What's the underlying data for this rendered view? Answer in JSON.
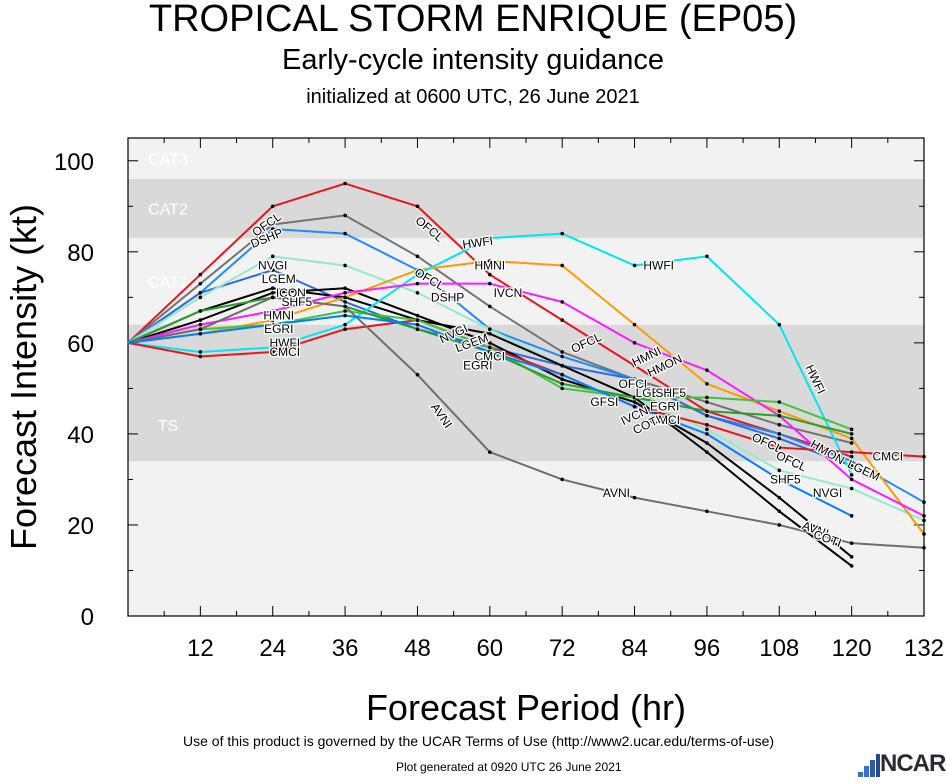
{
  "header": {
    "title": "TROPICAL STORM ENRIQUE (EP05)",
    "subtitle": "Early-cycle intensity guidance",
    "initialized": "initialized at 0600 UTC, 26 June 2021"
  },
  "footer": {
    "terms": "Use of this product is governed by the UCAR Terms of Use (http://www2.ucar.edu/terms-of-use)",
    "generated": "Plot generated at 0920 UTC   26 June 2021",
    "logo_text": "NCAR"
  },
  "chart_data": {
    "type": "line",
    "title": "TROPICAL STORM ENRIQUE (EP05)",
    "subtitle": "Early-cycle intensity guidance",
    "xlabel": "Forecast Period (hr)",
    "ylabel": "Forecast Intensity (kt)",
    "xlim": [
      0,
      132
    ],
    "ylim": [
      0,
      105
    ],
    "xticks": [
      12,
      24,
      36,
      48,
      60,
      72,
      84,
      96,
      108,
      120,
      132
    ],
    "yticks": [
      0,
      20,
      40,
      60,
      80,
      100
    ],
    "bands": [
      {
        "label": "TS",
        "from": 34,
        "to": 64,
        "fill": "#d9d9d9"
      },
      {
        "label": "CAT1",
        "from": 64,
        "to": 83,
        "fill": "#f2f2f2"
      },
      {
        "label": "CAT2",
        "from": 83,
        "to": 96,
        "fill": "#d9d9d9"
      },
      {
        "label": "CAT3",
        "from": 96,
        "to": 105,
        "fill": "#f2f2f2"
      }
    ],
    "below_band_fill": "#f2f2f2",
    "series": [
      {
        "name": "OFCL",
        "color": "#e8161c",
        "x": [
          0,
          12,
          24,
          36,
          48,
          60,
          72,
          84,
          96,
          108,
          120
        ],
        "values": [
          60,
          75,
          90,
          95,
          90,
          75,
          65,
          55,
          45,
          40,
          35
        ]
      },
      {
        "name": "DSHP",
        "color": "#737373",
        "x": [
          0,
          12,
          24,
          36,
          48,
          60,
          72,
          84,
          96,
          108,
          120
        ],
        "values": [
          60,
          73,
          86,
          88,
          79,
          68,
          58,
          52,
          47,
          42,
          38
        ]
      },
      {
        "name": "SHF5",
        "color": "#1e8bff",
        "x": [
          0,
          12,
          24,
          36,
          48,
          60,
          72,
          84,
          96,
          108,
          120,
          132
        ],
        "values": [
          60,
          71,
          85,
          84,
          76,
          63,
          57,
          52,
          44,
          40,
          34,
          25
        ]
      },
      {
        "name": "LGEM",
        "color": "#2f6be0",
        "x": [
          0,
          12,
          24,
          36,
          48,
          60,
          72,
          84,
          96,
          108,
          120
        ],
        "values": [
          60,
          71,
          76,
          69,
          63,
          59,
          55,
          52,
          44,
          39,
          33
        ]
      },
      {
        "name": "NVGI",
        "color": "#95e8cc",
        "x": [
          0,
          12,
          24,
          36,
          48,
          60,
          72,
          84,
          96,
          108,
          120,
          132
        ],
        "values": [
          60,
          70,
          79,
          77,
          71,
          63,
          55,
          48,
          41,
          32,
          28,
          21
        ]
      },
      {
        "name": "IVCN",
        "color": "#000000",
        "x": [
          0,
          12,
          24,
          36,
          48,
          60,
          72,
          84,
          96,
          108,
          120
        ],
        "values": [
          60,
          67,
          72,
          70,
          65,
          62,
          55,
          48,
          36,
          23,
          11
        ]
      },
      {
        "name": "ICON",
        "color": "#000000",
        "x": [
          0,
          12,
          24,
          36,
          48,
          60,
          72,
          84,
          96,
          108,
          120
        ],
        "values": [
          60,
          65,
          71,
          72,
          66,
          60,
          52,
          47,
          38,
          26,
          13
        ]
      },
      {
        "name": "HMNI",
        "color": "#ff9a00",
        "x": [
          0,
          12,
          24,
          36,
          48,
          60,
          72,
          84,
          96,
          108,
          120,
          132
        ],
        "values": [
          60,
          62,
          65,
          70,
          76,
          78,
          77,
          64,
          51,
          45,
          39,
          18
        ]
      },
      {
        "name": "HWFI",
        "color": "#00e5f0",
        "x": [
          0,
          12,
          24,
          36,
          48,
          60,
          72,
          84,
          96,
          108,
          120
        ],
        "values": [
          60,
          58,
          59,
          64,
          75,
          83,
          84,
          77,
          79,
          64,
          31
        ]
      },
      {
        "name": "CMCI",
        "color": "#e8161c",
        "x": [
          0,
          12,
          24,
          36,
          48,
          60,
          72,
          84,
          96,
          108,
          120,
          132
        ],
        "values": [
          60,
          57,
          58,
          63,
          65,
          59,
          53,
          46,
          42,
          37,
          36,
          35
        ]
      },
      {
        "name": "GFSI",
        "color": "#ff1aff",
        "x": [
          0,
          12,
          24,
          36,
          48,
          60,
          72,
          84,
          96,
          108,
          120,
          132
        ],
        "values": [
          60,
          64,
          67,
          71,
          73,
          73,
          69,
          60,
          54,
          44,
          30,
          22
        ]
      },
      {
        "name": "EGRI",
        "color": "#3fc43f",
        "x": [
          0,
          12,
          24,
          36,
          48,
          60,
          72,
          84,
          96,
          108,
          120
        ],
        "values": [
          60,
          63,
          64,
          67,
          65,
          59,
          50,
          48,
          48,
          47,
          41
        ]
      },
      {
        "name": "HMON",
        "color": "#2a9d2a",
        "x": [
          0,
          12,
          24,
          36,
          48,
          60,
          72,
          84,
          96,
          108,
          120
        ],
        "values": [
          60,
          67,
          70,
          68,
          63,
          58,
          51,
          48,
          45,
          44,
          40
        ]
      },
      {
        "name": "AVNI",
        "color": "#6e6e6e",
        "x": [
          0,
          12,
          24,
          36,
          48,
          60,
          72,
          84,
          96,
          108,
          120,
          132
        ],
        "values": [
          60,
          63,
          70,
          68,
          53,
          36,
          30,
          26,
          23,
          20,
          16,
          15
        ]
      },
      {
        "name": "COTI",
        "color": "#0080ff",
        "x": [
          0,
          12,
          24,
          36,
          48,
          60,
          72,
          84,
          96,
          108,
          120
        ],
        "values": [
          60,
          62,
          64,
          66,
          64,
          58,
          53,
          46,
          40,
          30,
          22
        ]
      }
    ],
    "labels": [
      {
        "text": "OFCL",
        "x": 23,
        "y": 86,
        "angle": -35
      },
      {
        "text": "DSHP",
        "x": 23,
        "y": 83,
        "angle": -22
      },
      {
        "text": "OFCL",
        "x": 50,
        "y": 85,
        "angle": 40
      },
      {
        "text": "HWFI",
        "x": 58,
        "y": 82,
        "angle": -8
      },
      {
        "text": "HMNI",
        "x": 60,
        "y": 77,
        "angle": 0
      },
      {
        "text": "HWFI",
        "x": 88,
        "y": 77,
        "angle": 0
      },
      {
        "text": "NVGI",
        "x": 24,
        "y": 77,
        "angle": 0
      },
      {
        "text": "LGEM",
        "x": 25,
        "y": 74,
        "angle": 0
      },
      {
        "text": "ICON",
        "x": 27,
        "y": 71,
        "angle": 0
      },
      {
        "text": "SHF5",
        "x": 28,
        "y": 69,
        "angle": 0
      },
      {
        "text": "OFCL",
        "x": 50,
        "y": 74,
        "angle": 30
      },
      {
        "text": "DSHP",
        "x": 53,
        "y": 70,
        "angle": 0
      },
      {
        "text": "IVCN",
        "x": 63,
        "y": 71,
        "angle": 0
      },
      {
        "text": "HMNI",
        "x": 25,
        "y": 66,
        "angle": 0
      },
      {
        "text": "EGRI",
        "x": 25,
        "y": 63,
        "angle": 0
      },
      {
        "text": "HWFI",
        "x": 26,
        "y": 60,
        "angle": 0
      },
      {
        "text": "CMCI",
        "x": 26,
        "y": 58,
        "angle": 0
      },
      {
        "text": "NVGI",
        "x": 54,
        "y": 62,
        "angle": -25
      },
      {
        "text": "LGEM",
        "x": 57,
        "y": 60,
        "angle": -20
      },
      {
        "text": "CMCI",
        "x": 60,
        "y": 57,
        "angle": 0
      },
      {
        "text": "EGRI",
        "x": 58,
        "y": 55,
        "angle": 0
      },
      {
        "text": "OFCL",
        "x": 76,
        "y": 60,
        "angle": -25
      },
      {
        "text": "HMNI",
        "x": 86,
        "y": 57,
        "angle": -25
      },
      {
        "text": "HMON",
        "x": 89,
        "y": 55,
        "angle": -25
      },
      {
        "text": "OFCL",
        "x": 84,
        "y": 51,
        "angle": 0
      },
      {
        "text": "LGEM",
        "x": 87,
        "y": 49,
        "angle": 0
      },
      {
        "text": "SHF5",
        "x": 90,
        "y": 49,
        "angle": 0
      },
      {
        "text": "EGRI",
        "x": 89,
        "y": 46,
        "angle": 0
      },
      {
        "text": "CMCI",
        "x": 89,
        "y": 43,
        "angle": 0
      },
      {
        "text": "GFSI",
        "x": 79,
        "y": 47,
        "angle": 0
      },
      {
        "text": "IVCN",
        "x": 84,
        "y": 44,
        "angle": -25
      },
      {
        "text": "COTI",
        "x": 86,
        "y": 42,
        "angle": -25
      },
      {
        "text": "AVNI",
        "x": 52,
        "y": 44,
        "angle": 55
      },
      {
        "text": "AVNI",
        "x": 81,
        "y": 27,
        "angle": 0
      },
      {
        "text": "HWFI",
        "x": 114,
        "y": 52,
        "angle": 65
      },
      {
        "text": "OFCL",
        "x": 106,
        "y": 38,
        "angle": 25
      },
      {
        "text": "OFCL",
        "x": 110,
        "y": 34,
        "angle": 25
      },
      {
        "text": "SHF5",
        "x": 109,
        "y": 30,
        "angle": 0
      },
      {
        "text": "NVGI",
        "x": 116,
        "y": 27,
        "angle": 0
      },
      {
        "text": "HMON",
        "x": 116,
        "y": 36,
        "angle": 30
      },
      {
        "text": "LGEM",
        "x": 122,
        "y": 32,
        "angle": 25
      },
      {
        "text": "CMCI",
        "x": 126,
        "y": 35,
        "angle": 0
      },
      {
        "text": "AVNI",
        "x": 114,
        "y": 19,
        "angle": 20
      },
      {
        "text": "COTI",
        "x": 116,
        "y": 17,
        "angle": 20
      }
    ]
  }
}
